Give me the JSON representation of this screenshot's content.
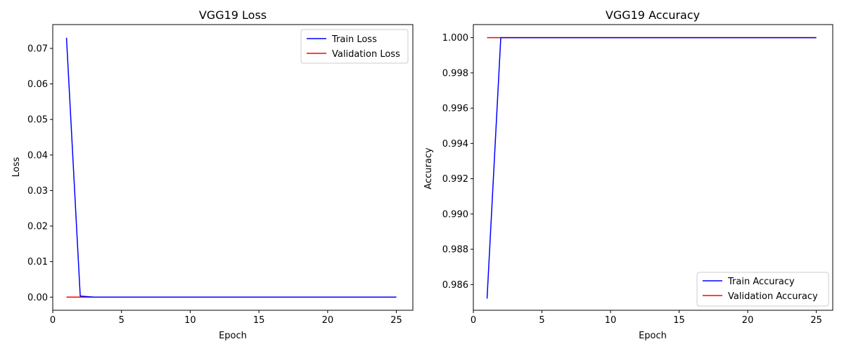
{
  "colors": {
    "train": "#0000ff",
    "validation": "#ff0000"
  },
  "chart_data": [
    {
      "type": "line",
      "title": "VGG19 Loss",
      "xlabel": "Epoch",
      "ylabel": "Loss",
      "xlim": [
        0,
        26.2
      ],
      "ylim": [
        -0.0037,
        0.0767
      ],
      "xticks": [
        0,
        5,
        10,
        15,
        20,
        25
      ],
      "yticks": [
        0.0,
        0.01,
        0.02,
        0.03,
        0.04,
        0.05,
        0.06,
        0.07
      ],
      "ytick_decimals": 2,
      "legend_position": "upper right",
      "series": [
        {
          "name": "Train Loss",
          "color": "#0000ff",
          "x": [
            1,
            2,
            3,
            4,
            5,
            6,
            7,
            8,
            9,
            10,
            11,
            12,
            13,
            14,
            15,
            16,
            17,
            18,
            19,
            20,
            21,
            22,
            23,
            24,
            25
          ],
          "y": [
            0.073,
            0.0003,
            0,
            0,
            0,
            0,
            0,
            0,
            0,
            0,
            0,
            0,
            0,
            0,
            0,
            0,
            0,
            0,
            0,
            0,
            0,
            0,
            0,
            0,
            0
          ]
        },
        {
          "name": "Validation Loss",
          "color": "#ff0000",
          "x": [
            1,
            2,
            3,
            4,
            5,
            6,
            7,
            8,
            9,
            10,
            11,
            12,
            13,
            14,
            15,
            16,
            17,
            18,
            19,
            20,
            21,
            22,
            23,
            24,
            25
          ],
          "y": [
            0,
            0,
            0,
            0,
            0,
            0,
            0,
            0,
            0,
            0,
            0,
            0,
            0,
            0,
            0,
            0,
            0,
            0,
            0,
            0,
            0,
            0,
            0,
            0,
            0
          ]
        }
      ]
    },
    {
      "type": "line",
      "title": "VGG19 Accuracy",
      "xlabel": "Epoch",
      "ylabel": "Accuracy",
      "xlim": [
        0,
        26.2
      ],
      "ylim": [
        0.98454,
        1.00074
      ],
      "xticks": [
        0,
        5,
        10,
        15,
        20,
        25
      ],
      "yticks": [
        0.986,
        0.988,
        0.99,
        0.992,
        0.994,
        0.996,
        0.998,
        1.0
      ],
      "ytick_decimals": 3,
      "legend_position": "lower right",
      "series": [
        {
          "name": "Train Accuracy",
          "color": "#0000ff",
          "x": [
            1,
            2,
            3,
            4,
            5,
            6,
            7,
            8,
            9,
            10,
            11,
            12,
            13,
            14,
            15,
            16,
            17,
            18,
            19,
            20,
            21,
            22,
            23,
            24,
            25
          ],
          "y": [
            0.9852,
            1,
            1,
            1,
            1,
            1,
            1,
            1,
            1,
            1,
            1,
            1,
            1,
            1,
            1,
            1,
            1,
            1,
            1,
            1,
            1,
            1,
            1,
            1,
            1
          ]
        },
        {
          "name": "Validation Accuracy",
          "color": "#ff0000",
          "x": [
            1,
            2,
            3,
            4,
            5,
            6,
            7,
            8,
            9,
            10,
            11,
            12,
            13,
            14,
            15,
            16,
            17,
            18,
            19,
            20,
            21,
            22,
            23,
            24,
            25
          ],
          "y": [
            1,
            1,
            1,
            1,
            1,
            1,
            1,
            1,
            1,
            1,
            1,
            1,
            1,
            1,
            1,
            1,
            1,
            1,
            1,
            1,
            1,
            1,
            1,
            1,
            1
          ]
        }
      ]
    }
  ]
}
